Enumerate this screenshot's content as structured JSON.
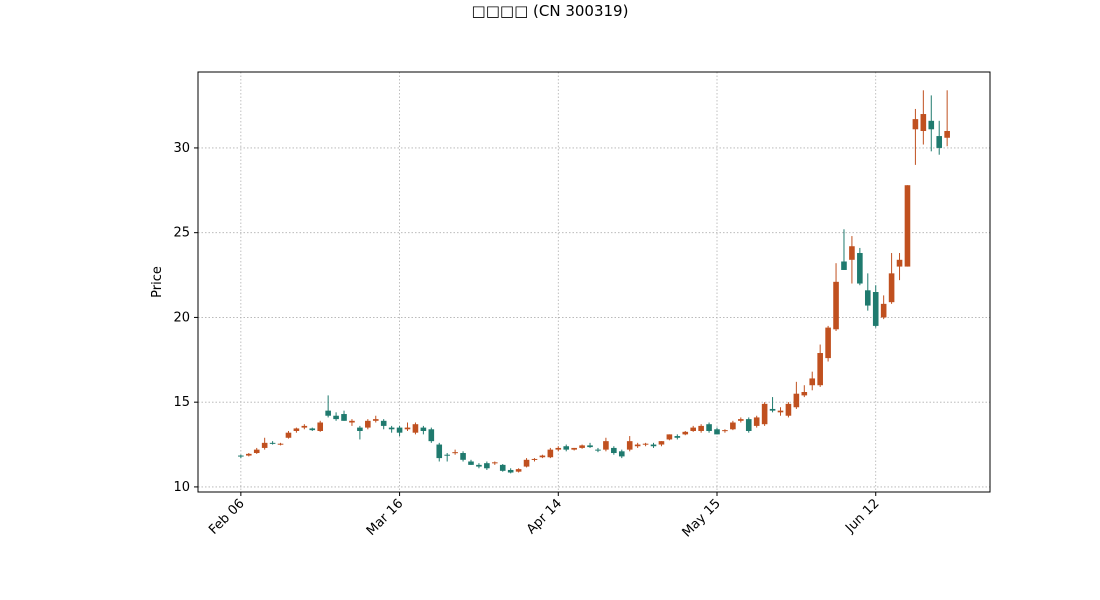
{
  "chart_data": {
    "type": "candlestick",
    "title": "□□□□ (CN 300319)",
    "ylabel": "Price",
    "categories": [
      "Feb 06",
      null,
      null,
      null,
      null,
      null,
      null,
      null,
      null,
      null,
      null,
      null,
      null,
      null,
      null,
      null,
      null,
      null,
      null,
      null,
      "Mar 16",
      null,
      null,
      null,
      null,
      null,
      null,
      null,
      null,
      null,
      null,
      null,
      null,
      null,
      null,
      null,
      null,
      null,
      null,
      null,
      "Apr 14",
      null,
      null,
      null,
      null,
      null,
      null,
      null,
      null,
      null,
      null,
      null,
      null,
      null,
      null,
      null,
      null,
      null,
      null,
      null,
      "May 15",
      null,
      null,
      null,
      null,
      null,
      null,
      null,
      null,
      null,
      null,
      null,
      null,
      null,
      null,
      null,
      null,
      null,
      null,
      null,
      "Jun 12",
      null,
      null,
      null,
      null,
      null,
      null,
      null,
      null,
      null
    ],
    "open": [
      11.85,
      11.85,
      12.0,
      12.3,
      12.6,
      12.5,
      12.9,
      13.3,
      13.5,
      13.45,
      13.3,
      14.5,
      14.2,
      14.3,
      13.8,
      13.5,
      13.5,
      13.9,
      13.9,
      13.5,
      13.5,
      13.4,
      13.2,
      13.5,
      13.4,
      12.5,
      11.9,
      12.0,
      12.0,
      11.5,
      11.3,
      11.4,
      11.4,
      11.3,
      11.0,
      10.9,
      11.2,
      11.6,
      11.75,
      11.75,
      12.2,
      12.4,
      12.2,
      12.3,
      12.45,
      12.2,
      12.2,
      12.3,
      12.1,
      12.2,
      12.4,
      12.5,
      12.5,
      12.5,
      12.8,
      13.0,
      13.1,
      13.3,
      13.3,
      13.7,
      13.4,
      13.3,
      13.4,
      13.9,
      14.0,
      13.6,
      13.7,
      14.6,
      14.4,
      14.2,
      14.7,
      15.4,
      16.0,
      16.0,
      17.6,
      19.3,
      23.3,
      23.4,
      23.8,
      21.6,
      21.5,
      20.0,
      20.9,
      23.0,
      23.0,
      31.1,
      31.0,
      31.6,
      30.7,
      30.6
    ],
    "high": [
      11.9,
      12.0,
      12.3,
      12.9,
      12.7,
      12.6,
      13.3,
      13.5,
      13.7,
      13.5,
      13.9,
      15.4,
      14.4,
      14.5,
      14.0,
      13.6,
      14.0,
      14.2,
      14.0,
      13.6,
      13.6,
      13.8,
      13.8,
      13.6,
      13.5,
      12.6,
      12.0,
      12.2,
      12.1,
      11.6,
      11.4,
      11.5,
      11.5,
      11.35,
      11.1,
      11.1,
      11.7,
      11.7,
      11.9,
      12.3,
      12.4,
      12.5,
      12.3,
      12.5,
      12.6,
      12.3,
      12.9,
      12.4,
      12.2,
      13.0,
      12.6,
      12.6,
      12.6,
      12.7,
      13.1,
      13.1,
      13.3,
      13.6,
      13.7,
      13.8,
      13.5,
      13.4,
      13.9,
      14.1,
      14.1,
      14.2,
      15.0,
      15.3,
      14.7,
      15.0,
      16.2,
      16.0,
      16.8,
      18.4,
      19.5,
      23.2,
      25.2,
      24.8,
      24.1,
      22.6,
      21.9,
      21.3,
      23.8,
      23.8,
      27.8,
      32.3,
      33.4,
      33.1,
      31.6,
      33.4
    ],
    "low": [
      11.7,
      11.8,
      11.95,
      12.2,
      12.5,
      12.45,
      12.85,
      13.2,
      13.4,
      13.3,
      13.25,
      14.1,
      13.9,
      13.9,
      13.6,
      12.8,
      13.4,
      13.8,
      13.4,
      13.2,
      13.0,
      13.3,
      13.1,
      13.1,
      12.6,
      11.5,
      11.5,
      11.9,
      11.5,
      11.3,
      11.1,
      11.0,
      11.3,
      10.9,
      10.8,
      10.85,
      11.15,
      11.5,
      11.7,
      11.7,
      12.1,
      12.1,
      12.15,
      12.25,
      12.3,
      12.05,
      12.1,
      11.9,
      11.7,
      12.1,
      12.3,
      12.4,
      12.3,
      12.4,
      12.75,
      12.8,
      13.05,
      13.25,
      13.2,
      13.2,
      13.1,
      13.2,
      13.35,
      13.8,
      13.2,
      13.5,
      13.6,
      14.4,
      14.2,
      14.1,
      14.6,
      15.3,
      15.7,
      15.9,
      17.4,
      19.2,
      22.8,
      22.0,
      21.9,
      20.4,
      19.4,
      19.9,
      20.8,
      22.2,
      23.0,
      29.0,
      30.2,
      29.8,
      29.6,
      30.1
    ],
    "close": [
      11.8,
      11.95,
      12.2,
      12.6,
      12.55,
      12.55,
      13.2,
      13.45,
      13.6,
      13.35,
      13.8,
      14.2,
      14.0,
      13.9,
      13.9,
      13.3,
      13.9,
      14.0,
      13.6,
      13.4,
      13.2,
      13.5,
      13.7,
      13.3,
      12.7,
      11.7,
      11.85,
      12.05,
      11.6,
      11.3,
      11.2,
      11.1,
      11.45,
      10.95,
      10.85,
      11.05,
      11.6,
      11.65,
      11.85,
      12.2,
      12.3,
      12.2,
      12.3,
      12.45,
      12.35,
      12.15,
      12.7,
      12.0,
      11.8,
      12.7,
      12.5,
      12.55,
      12.4,
      12.7,
      13.1,
      12.9,
      13.25,
      13.5,
      13.6,
      13.3,
      13.1,
      13.35,
      13.8,
      14.0,
      13.3,
      14.1,
      14.9,
      14.5,
      14.5,
      14.9,
      15.5,
      15.6,
      16.4,
      17.9,
      19.4,
      22.1,
      22.8,
      24.2,
      22.0,
      20.7,
      19.5,
      20.8,
      22.6,
      23.4,
      27.8,
      31.7,
      32.0,
      31.1,
      30.0,
      31.0
    ],
    "up_color": "#c0501f",
    "down_color": "#1f7a6e",
    "xlim": [
      -5.4,
      94.4
    ],
    "ylim": [
      9.7,
      34.48
    ],
    "yticks": [
      10,
      15,
      20,
      25,
      30
    ],
    "grid": true
  }
}
